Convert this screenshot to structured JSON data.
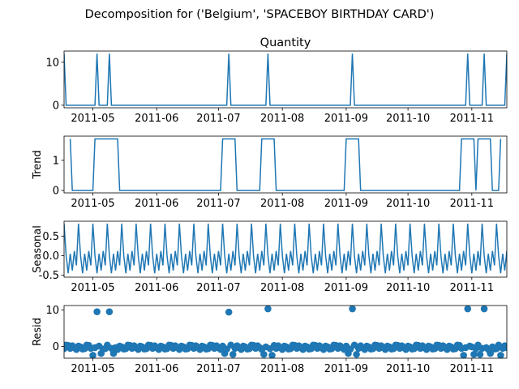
{
  "suptitle": "Decomposition for ('Belgium', 'SPACEBOY BIRTHDAY CARD')",
  "chart_data": [
    {
      "type": "line",
      "title": "Quantity",
      "ylabel": "",
      "xlim": [
        "2011-04-17",
        "2011-11-18"
      ],
      "ylim": [
        -0.6,
        12.6
      ],
      "yticks": [
        0,
        10
      ],
      "xticks": [
        "2011-05",
        "2011-06",
        "2011-07",
        "2011-08",
        "2011-09",
        "2011-10",
        "2011-11"
      ],
      "series_color": "#1f77b4",
      "points": [
        [
          "2011-04-17",
          12
        ],
        [
          "2011-04-18",
          0
        ],
        [
          "2011-05-02",
          0
        ],
        [
          "2011-05-03",
          12
        ],
        [
          "2011-05-04",
          0
        ],
        [
          "2011-05-08",
          0
        ],
        [
          "2011-05-09",
          12
        ],
        [
          "2011-05-10",
          0
        ],
        [
          "2011-07-05",
          0
        ],
        [
          "2011-07-06",
          12
        ],
        [
          "2011-07-07",
          0
        ],
        [
          "2011-07-24",
          0
        ],
        [
          "2011-07-25",
          12
        ],
        [
          "2011-07-26",
          0
        ],
        [
          "2011-09-03",
          0
        ],
        [
          "2011-09-04",
          12
        ],
        [
          "2011-09-05",
          0
        ],
        [
          "2011-10-29",
          0
        ],
        [
          "2011-10-30",
          12
        ],
        [
          "2011-10-31",
          0
        ],
        [
          "2011-11-06",
          0
        ],
        [
          "2011-11-07",
          12
        ],
        [
          "2011-11-08",
          0
        ],
        [
          "2011-11-17",
          0
        ],
        [
          "2011-11-18",
          12
        ]
      ]
    },
    {
      "type": "line",
      "title": "",
      "ylabel": "Trend",
      "xlim": [
        "2011-04-17",
        "2011-11-18"
      ],
      "ylim": [
        -0.08,
        1.8
      ],
      "yticks": [
        0,
        1
      ],
      "xticks": [
        "2011-05",
        "2011-06",
        "2011-07",
        "2011-08",
        "2011-09",
        "2011-10",
        "2011-11"
      ],
      "series_color": "#1f77b4",
      "points": [
        [
          "2011-04-20",
          1.71
        ],
        [
          "2011-04-21",
          0
        ],
        [
          "2011-05-01",
          0
        ],
        [
          "2011-05-02",
          1.71
        ],
        [
          "2011-05-13",
          1.71
        ],
        [
          "2011-05-14",
          0
        ],
        [
          "2011-07-02",
          0
        ],
        [
          "2011-07-03",
          1.71
        ],
        [
          "2011-07-09",
          1.71
        ],
        [
          "2011-07-10",
          0
        ],
        [
          "2011-07-21",
          0
        ],
        [
          "2011-07-22",
          1.71
        ],
        [
          "2011-07-28",
          1.71
        ],
        [
          "2011-07-29",
          0
        ],
        [
          "2011-08-31",
          0
        ],
        [
          "2011-09-01",
          1.71
        ],
        [
          "2011-09-07",
          1.71
        ],
        [
          "2011-09-08",
          0
        ],
        [
          "2011-10-26",
          0
        ],
        [
          "2011-10-27",
          1.71
        ],
        [
          "2011-11-02",
          1.71
        ],
        [
          "2011-11-03",
          0
        ],
        [
          "2011-11-04",
          1.71
        ],
        [
          "2011-11-10",
          1.71
        ],
        [
          "2011-11-11",
          0
        ],
        [
          "2011-11-14",
          0
        ],
        [
          "2011-11-15",
          1.71
        ]
      ]
    },
    {
      "type": "line",
      "title": "",
      "ylabel": "Seasonal",
      "xlim": [
        "2011-04-17",
        "2011-11-18"
      ],
      "ylim": [
        -0.55,
        0.88
      ],
      "yticks": [
        -0.5,
        0.0,
        0.5
      ],
      "xticks": [
        "2011-05",
        "2011-06",
        "2011-07",
        "2011-08",
        "2011-09",
        "2011-10",
        "2011-11"
      ],
      "series_color": "#1f77b4",
      "period_days": 7,
      "period_start": "2011-04-17",
      "period_values": [
        0.82,
        0.0,
        -0.45,
        0.05,
        -0.38,
        0.12,
        -0.25
      ]
    },
    {
      "type": "scatter",
      "title": "",
      "ylabel": "Resid",
      "xlim": [
        "2011-04-17",
        "2011-11-18"
      ],
      "ylim": [
        -3.2,
        11.2
      ],
      "yticks": [
        0,
        10
      ],
      "xticks": [
        "2011-05",
        "2011-06",
        "2011-07",
        "2011-08",
        "2011-09",
        "2011-10",
        "2011-11"
      ],
      "series_color": "#1f77b4",
      "zero_line": true,
      "outliers": [
        [
          "2011-05-03",
          9.5
        ],
        [
          "2011-05-09",
          9.5
        ],
        [
          "2011-07-06",
          9.4
        ],
        [
          "2011-07-25",
          10.3
        ],
        [
          "2011-09-04",
          10.3
        ],
        [
          "2011-10-30",
          10.3
        ],
        [
          "2011-11-07",
          10.3
        ]
      ],
      "pattern": [
        -0.4,
        0.6,
        0.5,
        -0.3,
        0.4,
        -0.1,
        -0.6,
        0.3,
        0.1,
        -0.5
      ],
      "dip_dates": [
        "2011-05-01",
        "2011-05-05",
        "2011-05-11",
        "2011-07-04",
        "2011-07-08",
        "2011-07-23",
        "2011-07-27",
        "2011-09-02",
        "2011-09-06",
        "2011-10-28",
        "2011-11-02",
        "2011-11-05",
        "2011-11-10",
        "2011-11-15"
      ]
    }
  ]
}
